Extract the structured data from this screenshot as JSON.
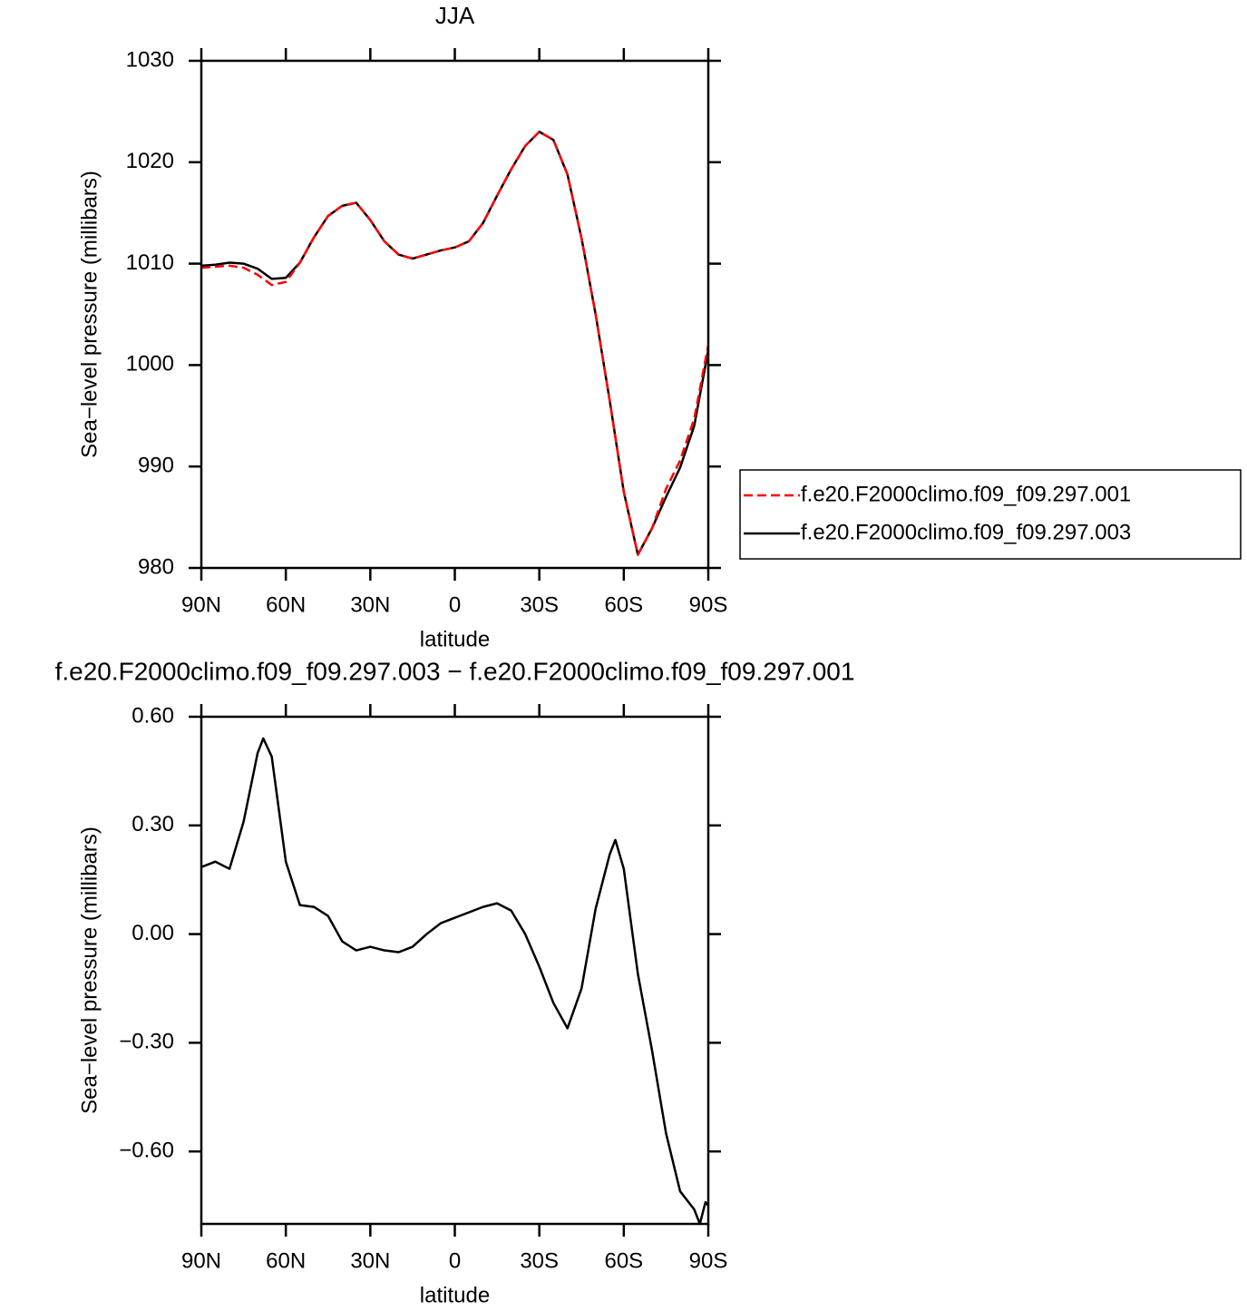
{
  "chart_data": [
    {
      "type": "line",
      "title": "JJA",
      "xlabel": "latitude",
      "ylabel": "Sea−level pressure (millibars)",
      "x": [
        90,
        85,
        80,
        75,
        70,
        65,
        60,
        55,
        50,
        45,
        40,
        35,
        30,
        25,
        20,
        15,
        10,
        5,
        0,
        -5,
        -10,
        -15,
        -20,
        -25,
        -30,
        -35,
        -40,
        -45,
        -50,
        -55,
        -60,
        -65,
        -70,
        -75,
        -80,
        -85,
        -90
      ],
      "series": [
        {
          "name": "f.e20.F2000climo.f09_f09.297.001",
          "color": "#ff0000",
          "linestyle": "dashed",
          "values": [
            1009.6,
            1009.7,
            1009.8,
            1009.6,
            1008.9,
            1007.9,
            1008.2,
            1010.1,
            1012.6,
            1014.7,
            1015.7,
            1016.0,
            1014.3,
            1012.2,
            1010.9,
            1010.5,
            1010.9,
            1011.3,
            1011.6,
            1012.2,
            1014.0,
            1016.7,
            1019.3,
            1021.6,
            1023.0,
            1022.2,
            1018.8,
            1012.5,
            1005.0,
            996.5,
            987.5,
            981.3,
            983.9,
            987.8,
            990.6,
            994.7,
            1002.0
          ]
        },
        {
          "name": "f.e20.F2000climo.f09_f09.297.003",
          "color": "#000000",
          "linestyle": "solid",
          "values": [
            1009.8,
            1009.9,
            1010.1,
            1010.0,
            1009.5,
            1008.5,
            1008.6,
            1010.1,
            1012.6,
            1014.7,
            1015.7,
            1016.0,
            1014.3,
            1012.2,
            1010.9,
            1010.5,
            1010.9,
            1011.3,
            1011.6,
            1012.2,
            1014.0,
            1016.7,
            1019.3,
            1021.6,
            1023.0,
            1022.2,
            1018.8,
            1012.5,
            1005.0,
            996.5,
            987.5,
            981.3,
            983.9,
            987.0,
            989.9,
            994.0,
            1001.5
          ]
        }
      ],
      "xlim": [
        90,
        -90
      ],
      "ylim": [
        980,
        1030
      ],
      "xticks": [
        {
          "value": 90,
          "label": "90N"
        },
        {
          "value": 60,
          "label": "60N"
        },
        {
          "value": 30,
          "label": "30N"
        },
        0,
        {
          "value": -30,
          "label": "30S"
        },
        {
          "value": -60,
          "label": "60S"
        },
        {
          "value": -90,
          "label": "90S"
        }
      ],
      "yticks": [
        980,
        990,
        1000,
        1010,
        1020,
        1030
      ],
      "legend": "right"
    },
    {
      "type": "line",
      "title": "f.e20.F2000climo.f09_f09.297.003 − f.e20.F2000climo.f09_f09.297.001",
      "xlabel": "latitude",
      "ylabel": "Sea−level pressure (millibars)",
      "x": [
        90,
        85,
        80,
        75,
        70,
        68,
        65,
        60,
        55,
        50,
        45,
        40,
        35,
        30,
        25,
        20,
        15,
        10,
        5,
        0,
        -5,
        -10,
        -15,
        -20,
        -25,
        -30,
        -35,
        -40,
        -45,
        -50,
        -55,
        -57,
        -60,
        -65,
        -70,
        -75,
        -80,
        -85,
        -87,
        -89,
        -90
      ],
      "values": [
        0.185,
        0.2,
        0.18,
        0.31,
        0.5,
        0.54,
        0.49,
        0.2,
        0.08,
        0.075,
        0.05,
        -0.02,
        -0.045,
        -0.035,
        -0.045,
        -0.05,
        -0.035,
        0.0,
        0.03,
        0.045,
        0.06,
        0.075,
        0.085,
        0.065,
        0.0,
        -0.09,
        -0.19,
        -0.26,
        -0.15,
        0.07,
        0.22,
        0.26,
        0.18,
        -0.11,
        -0.32,
        -0.55,
        -0.71,
        -0.76,
        -0.8,
        -0.74,
        -0.75
      ],
      "color": "#000000",
      "xlim": [
        90,
        -90
      ],
      "ylim": [
        -0.8,
        0.6
      ],
      "xticks": [
        {
          "value": 90,
          "label": "90N"
        },
        {
          "value": 60,
          "label": "60N"
        },
        {
          "value": 30,
          "label": "30N"
        },
        0,
        {
          "value": -30,
          "label": "30S"
        },
        {
          "value": -60,
          "label": "60S"
        },
        {
          "value": -90,
          "label": "90S"
        }
      ],
      "yticks": [
        {
          "value": -0.6,
          "label": "−0.60"
        },
        {
          "value": -0.3,
          "label": "−0.30"
        },
        {
          "value": 0,
          "label": "0.00"
        },
        {
          "value": 0.3,
          "label": "0.30"
        },
        {
          "value": 0.6,
          "label": "0.60"
        }
      ]
    }
  ]
}
